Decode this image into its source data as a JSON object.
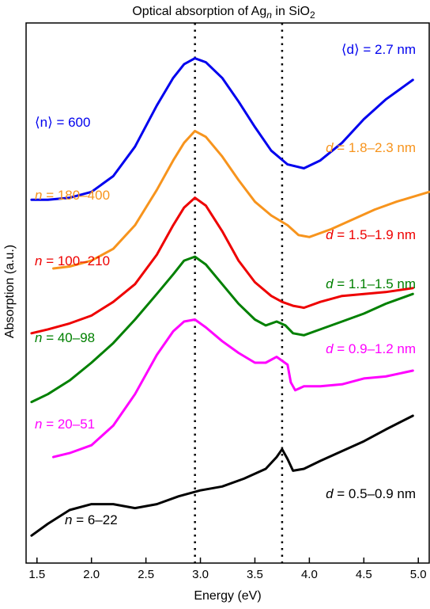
{
  "chart_data": {
    "type": "line",
    "title": {
      "prefix": "Optical absorption of Ag",
      "sub": "n",
      "mid": " in SiO",
      "sub2": "2"
    },
    "xlabel": "Energy (eV)",
    "ylabel": "Absorption (a.u.)",
    "xlim": [
      1.4,
      5.1
    ],
    "x_ticks": [
      "1.5",
      "2.0",
      "2.5",
      "3.0",
      "3.5",
      "4.0",
      "4.5",
      "5.0"
    ],
    "x_tick_values": [
      1.5,
      2.0,
      2.5,
      3.0,
      3.5,
      4.0,
      4.5,
      5.0
    ],
    "y_ticks_shown": false,
    "grid": false,
    "reference_lines_x": [
      2.95,
      3.75
    ],
    "series": [
      {
        "key": "n600",
        "color": "#0000ee",
        "x": [
          1.45,
          1.6,
          1.8,
          2.0,
          2.2,
          2.4,
          2.6,
          2.75,
          2.85,
          2.95,
          3.05,
          3.2,
          3.35,
          3.5,
          3.65,
          3.8,
          3.95,
          4.1,
          4.3,
          4.5,
          4.7,
          4.95
        ],
        "y": [
          1.85,
          1.85,
          1.86,
          1.89,
          1.97,
          2.12,
          2.33,
          2.47,
          2.54,
          2.57,
          2.55,
          2.47,
          2.35,
          2.22,
          2.1,
          2.03,
          2.01,
          2.05,
          2.14,
          2.26,
          2.36,
          2.46
        ],
        "label_n": {
          "italic": "",
          "text": "⟨n⟩ = 600"
        },
        "label_d": {
          "italic": "",
          "text": "⟨d⟩ = 2.7 nm"
        }
      },
      {
        "key": "n180",
        "color": "#f7941d",
        "x": [
          1.65,
          1.8,
          2.0,
          2.2,
          2.4,
          2.6,
          2.75,
          2.85,
          2.95,
          3.05,
          3.2,
          3.35,
          3.5,
          3.65,
          3.8,
          3.9,
          4.0,
          4.2,
          4.4,
          4.6,
          4.8,
          5.1
        ],
        "y": [
          1.5,
          1.51,
          1.54,
          1.6,
          1.72,
          1.9,
          2.05,
          2.14,
          2.2,
          2.17,
          2.07,
          1.95,
          1.84,
          1.77,
          1.72,
          1.67,
          1.66,
          1.7,
          1.75,
          1.8,
          1.84,
          1.89
        ],
        "label_n": {
          "italic": "n",
          "text": " = 180–400"
        },
        "label_d": {
          "italic": "d",
          "text": " = 1.8–2.3 nm"
        }
      },
      {
        "key": "n100",
        "color": "#ee0000",
        "x": [
          1.45,
          1.6,
          1.8,
          2.0,
          2.2,
          2.4,
          2.6,
          2.75,
          2.85,
          2.95,
          3.05,
          3.2,
          3.35,
          3.5,
          3.65,
          3.75,
          3.85,
          3.95,
          4.1,
          4.3,
          4.5,
          4.7,
          4.95
        ],
        "y": [
          1.17,
          1.19,
          1.22,
          1.26,
          1.33,
          1.42,
          1.57,
          1.72,
          1.81,
          1.86,
          1.82,
          1.69,
          1.54,
          1.43,
          1.36,
          1.33,
          1.31,
          1.3,
          1.33,
          1.36,
          1.37,
          1.38,
          1.4
        ],
        "label_n": {
          "italic": "n",
          "text": " = 100–210"
        },
        "label_d": {
          "italic": "d",
          "text": " = 1.5–1.9 nm"
        }
      },
      {
        "key": "n40",
        "color": "#008000",
        "x": [
          1.45,
          1.6,
          1.8,
          2.0,
          2.2,
          2.4,
          2.6,
          2.75,
          2.85,
          2.95,
          3.05,
          3.2,
          3.35,
          3.5,
          3.6,
          3.7,
          3.78,
          3.85,
          3.95,
          4.1,
          4.3,
          4.5,
          4.7,
          4.95
        ],
        "y": [
          0.82,
          0.86,
          0.93,
          1.02,
          1.12,
          1.24,
          1.37,
          1.47,
          1.54,
          1.56,
          1.52,
          1.42,
          1.32,
          1.24,
          1.21,
          1.23,
          1.21,
          1.17,
          1.16,
          1.19,
          1.23,
          1.27,
          1.32,
          1.37
        ],
        "label_n": {
          "italic": "n",
          "text": " = 40–98"
        },
        "label_d": {
          "italic": "d",
          "text": " = 1.1–1.5 nm"
        }
      },
      {
        "key": "n20",
        "color": "#ff00ff",
        "x": [
          1.65,
          1.8,
          2.0,
          2.2,
          2.4,
          2.6,
          2.75,
          2.85,
          2.95,
          3.05,
          3.2,
          3.35,
          3.5,
          3.6,
          3.7,
          3.8,
          3.83,
          3.87,
          3.95,
          4.1,
          4.3,
          4.5,
          4.7,
          4.95
        ],
        "y": [
          0.54,
          0.56,
          0.6,
          0.7,
          0.86,
          1.06,
          1.18,
          1.23,
          1.24,
          1.2,
          1.13,
          1.07,
          1.02,
          1.02,
          1.05,
          1.01,
          0.92,
          0.88,
          0.9,
          0.9,
          0.91,
          0.94,
          0.95,
          0.98
        ],
        "label_n": {
          "italic": "n",
          "text": " = 20–51"
        },
        "label_d": {
          "italic": "d",
          "text": " = 0.9–1.2 nm"
        }
      },
      {
        "key": "n6",
        "color": "#000000",
        "x": [
          1.45,
          1.6,
          1.8,
          2.0,
          2.2,
          2.4,
          2.6,
          2.8,
          3.0,
          3.2,
          3.4,
          3.6,
          3.7,
          3.75,
          3.8,
          3.85,
          3.95,
          4.1,
          4.3,
          4.5,
          4.7,
          4.95
        ],
        "y": [
          0.14,
          0.2,
          0.27,
          0.3,
          0.3,
          0.28,
          0.3,
          0.34,
          0.37,
          0.39,
          0.43,
          0.48,
          0.54,
          0.58,
          0.53,
          0.47,
          0.48,
          0.52,
          0.57,
          0.62,
          0.68,
          0.75
        ],
        "label_n": {
          "italic": "n",
          "text": " = 6–22"
        },
        "label_d": {
          "italic": "d",
          "text": " = 0.5–0.9 nm"
        }
      }
    ]
  }
}
